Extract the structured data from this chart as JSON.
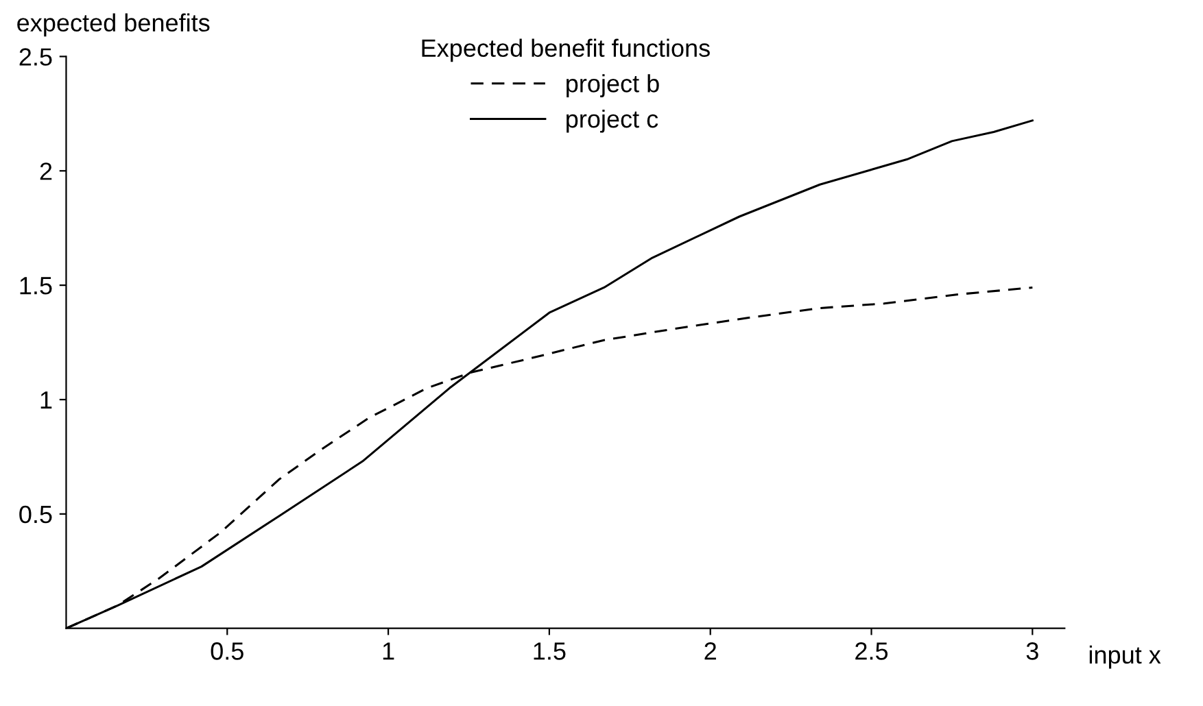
{
  "chart_data": {
    "type": "line",
    "ylabel": "expected benefits",
    "xlabel": "input x",
    "legend_title": "Expected benefit functions",
    "legend": "top",
    "xlim": [
      0,
      3.1
    ],
    "ylim": [
      0,
      2.5
    ],
    "xticks": [
      0.5,
      1,
      1.5,
      2,
      2.5,
      3
    ],
    "yticks": [
      0.5,
      1,
      1.5,
      2,
      2.5
    ],
    "grid": false,
    "series": [
      {
        "name": "project b",
        "color": "#000000",
        "line_style": "dashed",
        "x": [
          0,
          0.16,
          0.29,
          0.48,
          0.66,
          0.79,
          0.94,
          1.12,
          1.26,
          1.44,
          1.67,
          1.89,
          2.13,
          2.34,
          2.54,
          2.77,
          3.0
        ],
        "values": [
          0,
          0.1,
          0.22,
          0.42,
          0.65,
          0.78,
          0.92,
          1.05,
          1.12,
          1.18,
          1.26,
          1.31,
          1.36,
          1.4,
          1.42,
          1.46,
          1.49
        ]
      },
      {
        "name": "project c",
        "color": "#000000",
        "line_style": "solid",
        "x": [
          0,
          0.16,
          0.42,
          0.66,
          0.92,
          1.19,
          1.5,
          1.67,
          1.82,
          2.09,
          2.34,
          2.61,
          2.75,
          2.88,
          3.0
        ],
        "values": [
          0,
          0.1,
          0.27,
          0.49,
          0.73,
          1.05,
          1.38,
          1.49,
          1.62,
          1.8,
          1.94,
          2.05,
          2.13,
          2.17,
          2.22
        ]
      }
    ]
  }
}
